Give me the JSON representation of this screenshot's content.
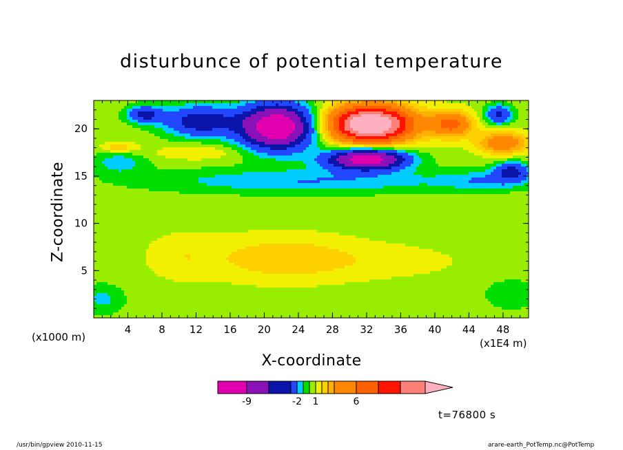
{
  "chart_data": {
    "type": "heatmap",
    "title": "disturbunce of potential temperature",
    "xlabel": "X-coordinate",
    "ylabel": "Z-coordinate",
    "x_unit_label": "(x1000 m)",
    "x_scale_label": "(x1E4 m)",
    "xlim": [
      0,
      51
    ],
    "ylim": [
      0,
      23
    ],
    "x_ticks": [
      "4",
      "8",
      "12",
      "16",
      "20",
      "24",
      "28",
      "32",
      "36",
      "40",
      "44",
      "48"
    ],
    "y_ticks": [
      "5",
      "10",
      "15",
      "20"
    ],
    "colorbar": {
      "levels": [
        -11,
        -9,
        -6,
        -4,
        -2,
        -1,
        0,
        1,
        2,
        3,
        4,
        6,
        8,
        10,
        12
      ],
      "tick_labels": [
        "-9",
        "-2",
        "1",
        "6"
      ],
      "colors": [
        "#e000b0",
        "#8a10b8",
        "#0a14a8",
        "#2248ff",
        "#00ccff",
        "#00dd00",
        "#99ee00",
        "#f0f000",
        "#ffd000",
        "#ffb000",
        "#ff8800",
        "#ff6000",
        "#ff1400",
        "#ff8078",
        "#ffb0c0"
      ]
    },
    "features": [
      {
        "x": 21.5,
        "z": 20.2,
        "min_level": "-11",
        "kind": "cold core"
      },
      {
        "x": 32.5,
        "z": 20.5,
        "max_level": "12",
        "kind": "warm core"
      },
      {
        "x": 32.0,
        "z": 16.8,
        "min_level": "-6",
        "kind": "cold core"
      },
      {
        "x": 23.0,
        "z": 6.0,
        "max_level": "4",
        "kind": "warm region"
      }
    ],
    "grid": false,
    "legend": "colorbar-bottom"
  },
  "time_label": "t=76800 s",
  "footer": {
    "left": "/usr/bin/gpview   2010-11-15",
    "right": "arare-earth_PotTemp.nc@PotTemp"
  }
}
